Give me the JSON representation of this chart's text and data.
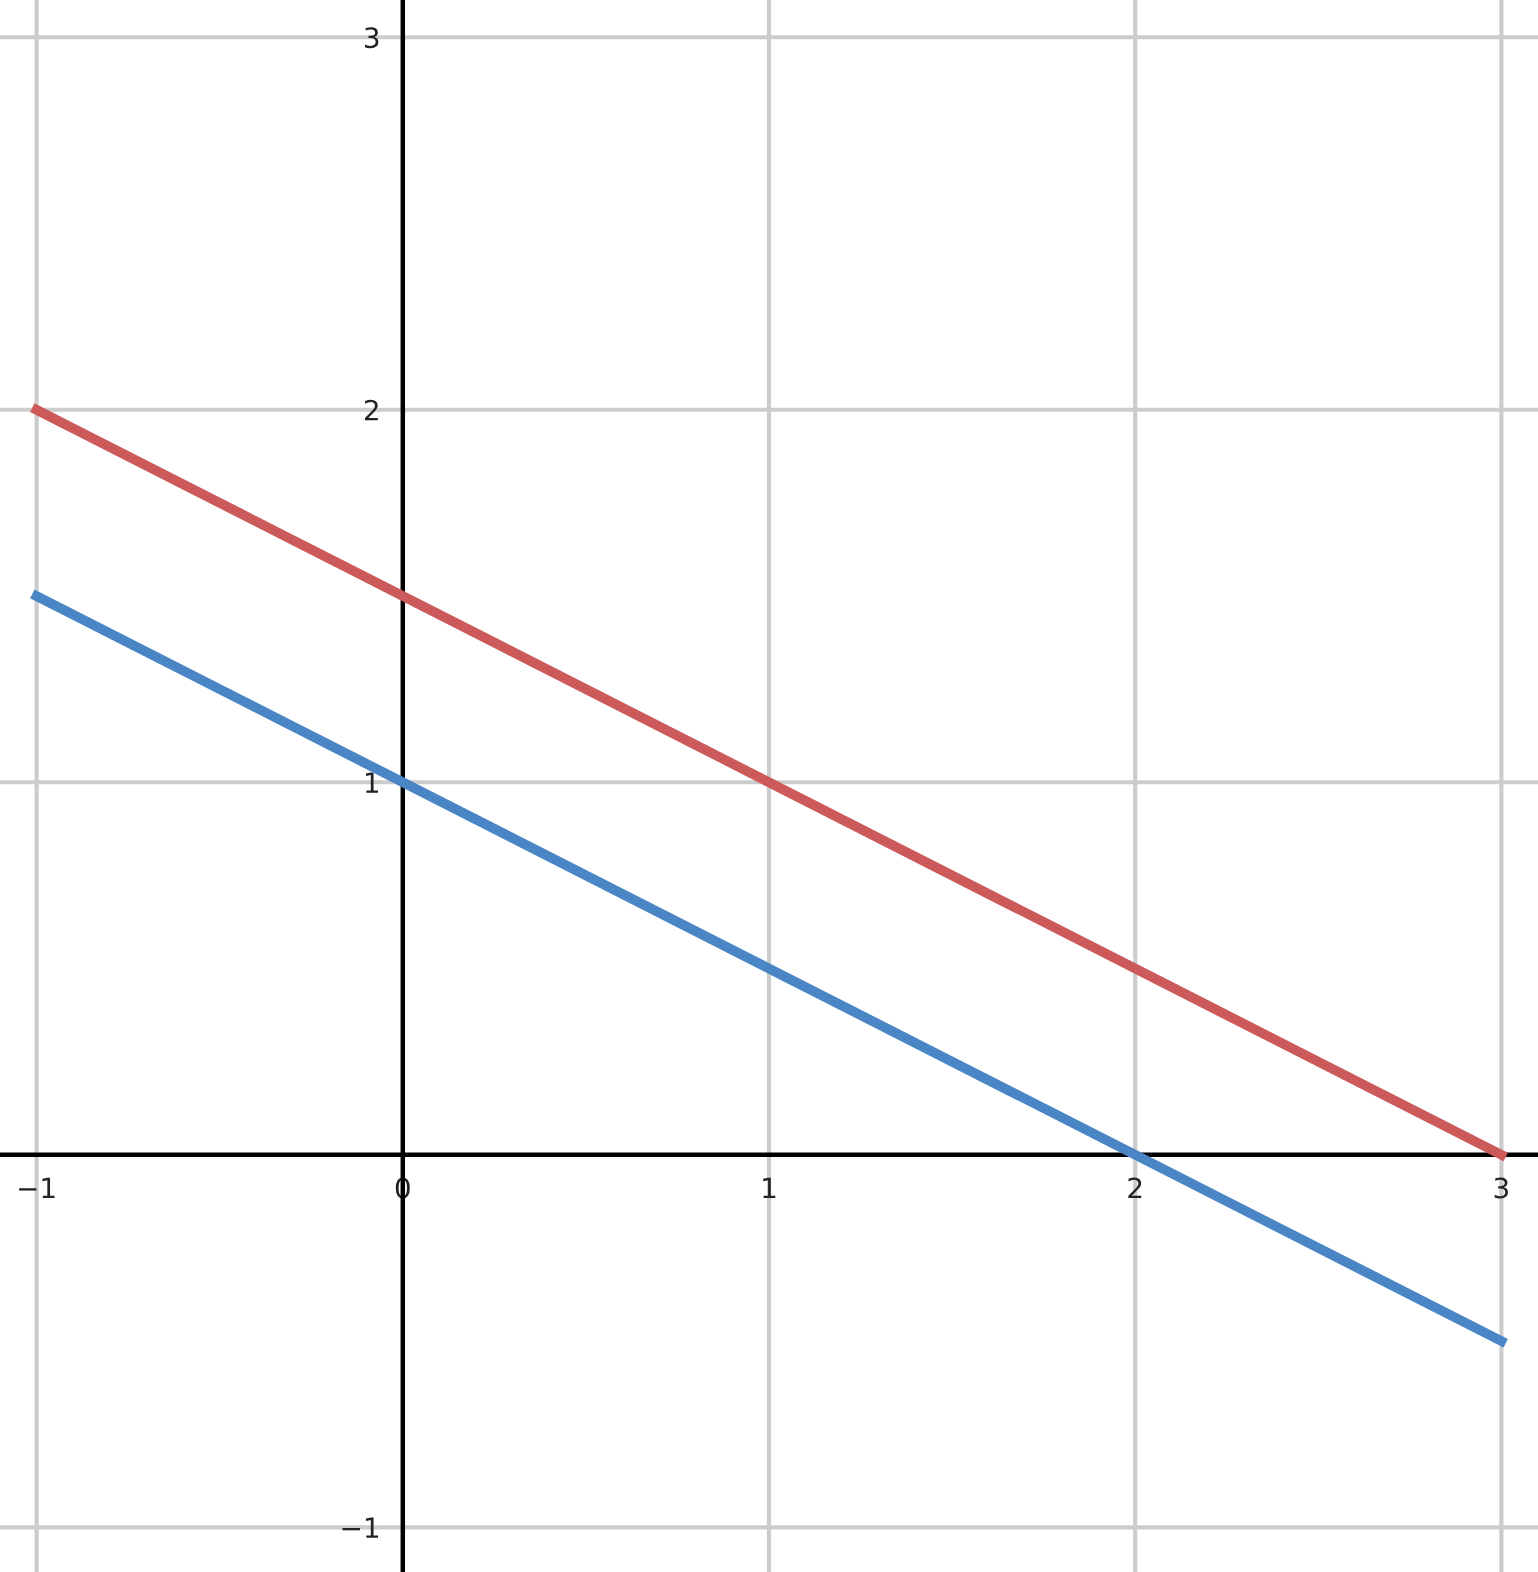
{
  "chart_data": {
    "type": "line",
    "x": [
      -1,
      3
    ],
    "series": [
      {
        "color": "#cc5a5a",
        "values": [
          2,
          0
        ]
      },
      {
        "color": "#4a86c5",
        "values": [
          1.5,
          -0.5
        ]
      }
    ],
    "xlim": [
      -1.1,
      3.1
    ],
    "ylim": [
      -1.12,
      3.1
    ],
    "xticks": [
      {
        "value": -1,
        "label": "−1"
      },
      0,
      1,
      2,
      3
    ],
    "yticks": [
      {
        "value": -1,
        "label": "−1"
      },
      1,
      2,
      3
    ],
    "grid": true,
    "marker": "none",
    "line_style": "solid"
  }
}
